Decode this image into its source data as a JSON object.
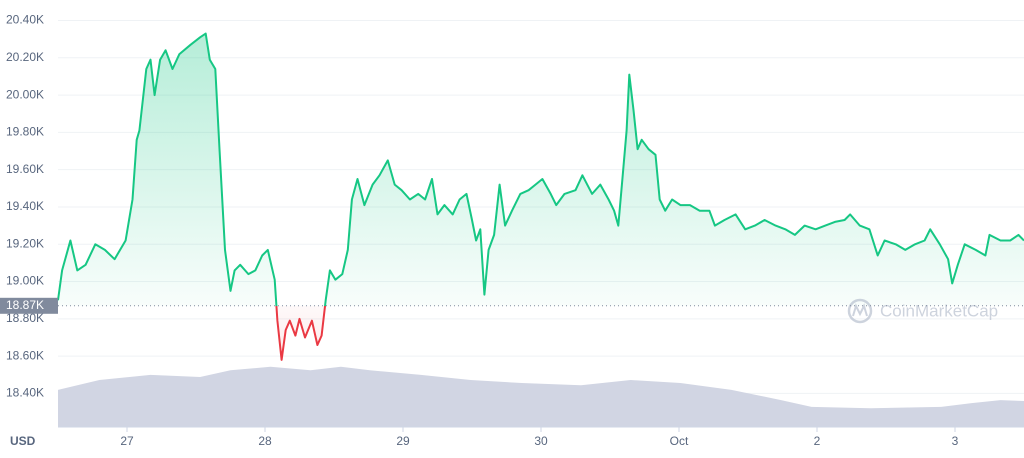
{
  "chart_data": {
    "type": "line",
    "axis_label": "USD",
    "watermark": "CoinMarketCap",
    "xlim": [
      -0.5,
      6.5
    ],
    "xticks": [
      {
        "value": 0,
        "label": "27"
      },
      {
        "value": 1,
        "label": "28"
      },
      {
        "value": 2,
        "label": "29"
      },
      {
        "value": 3,
        "label": "30"
      },
      {
        "value": 4,
        "label": "Oct"
      },
      {
        "value": 5,
        "label": "2"
      },
      {
        "value": 6,
        "label": "3"
      }
    ],
    "ylim": [
      18220,
      20510
    ],
    "yticks": [
      {
        "value": 18400,
        "label": "18.40K"
      },
      {
        "value": 18600,
        "label": "18.60K"
      },
      {
        "value": 18800,
        "label": "18.80K"
      },
      {
        "value": 19000,
        "label": "19.00K"
      },
      {
        "value": 19200,
        "label": "19.20K"
      },
      {
        "value": 19400,
        "label": "19.40K"
      },
      {
        "value": 19600,
        "label": "19.60K"
      },
      {
        "value": 19800,
        "label": "19.80K"
      },
      {
        "value": 20000,
        "label": "20.00K"
      },
      {
        "value": 20200,
        "label": "20.20K"
      },
      {
        "value": 20400,
        "label": "20.40K"
      }
    ],
    "y2lim": [
      0,
      100
    ],
    "grid": true,
    "reference": {
      "value": 18870,
      "label": "18.87K"
    },
    "up_color": "#16c784",
    "down_color": "#ea3943",
    "series": [
      {
        "name": "Price",
        "x": [
          -0.5,
          -0.47,
          -0.41,
          -0.36,
          -0.3,
          -0.23,
          -0.16,
          -0.09,
          -0.01,
          0.04,
          0.07,
          0.09,
          0.14,
          0.17,
          0.2,
          0.24,
          0.28,
          0.33,
          0.38,
          0.46,
          0.53,
          0.57,
          0.6,
          0.64,
          0.67,
          0.71,
          0.75,
          0.78,
          0.82,
          0.88,
          0.93,
          0.98,
          1.02,
          1.07,
          1.09,
          1.12,
          1.15,
          1.18,
          1.22,
          1.25,
          1.29,
          1.34,
          1.38,
          1.41,
          1.44,
          1.47,
          1.51,
          1.56,
          1.6,
          1.63,
          1.67,
          1.72,
          1.78,
          1.83,
          1.89,
          1.94,
          1.99,
          2.05,
          2.11,
          2.16,
          2.21,
          2.25,
          2.3,
          2.36,
          2.41,
          2.46,
          2.5,
          2.53,
          2.56,
          2.59,
          2.62,
          2.66,
          2.7,
          2.74,
          2.79,
          2.85,
          2.91,
          2.96,
          3.01,
          3.07,
          3.11,
          3.17,
          3.25,
          3.3,
          3.37,
          3.43,
          3.49,
          3.53,
          3.56,
          3.59,
          3.62,
          3.64,
          3.67,
          3.7,
          3.73,
          3.78,
          3.83,
          3.86,
          3.9,
          3.95,
          4.01,
          4.08,
          4.15,
          4.22,
          4.26,
          4.33,
          4.41,
          4.48,
          4.55,
          4.62,
          4.7,
          4.77,
          4.84,
          4.91,
          4.99,
          5.06,
          5.13,
          5.2,
          5.24,
          5.31,
          5.38,
          5.44,
          5.49,
          5.57,
          5.64,
          5.71,
          5.78,
          5.82,
          5.89,
          5.95,
          5.98,
          6.02,
          6.07,
          6.15,
          6.22,
          6.25,
          6.33,
          6.4,
          6.46,
          6.5
        ],
        "values": [
          18900,
          19060,
          19220,
          19060,
          19090,
          19200,
          19170,
          19120,
          19220,
          19440,
          19760,
          19810,
          20140,
          20190,
          20000,
          20190,
          20240,
          20140,
          20220,
          20270,
          20310,
          20330,
          20190,
          20140,
          19710,
          19170,
          18950,
          19060,
          19090,
          19040,
          19060,
          19140,
          19170,
          19010,
          18790,
          18580,
          18740,
          18790,
          18710,
          18800,
          18700,
          18790,
          18660,
          18710,
          18900,
          19060,
          19010,
          19040,
          19170,
          19440,
          19550,
          19410,
          19520,
          19570,
          19650,
          19520,
          19490,
          19440,
          19470,
          19440,
          19550,
          19360,
          19410,
          19360,
          19440,
          19470,
          19330,
          19220,
          19280,
          18930,
          19170,
          19250,
          19520,
          19300,
          19380,
          19470,
          19490,
          19520,
          19550,
          19470,
          19410,
          19470,
          19490,
          19570,
          19470,
          19520,
          19440,
          19380,
          19300,
          19550,
          19810,
          20110,
          19920,
          19710,
          19760,
          19710,
          19680,
          19440,
          19380,
          19440,
          19410,
          19410,
          19380,
          19380,
          19300,
          19330,
          19360,
          19280,
          19300,
          19330,
          19300,
          19280,
          19250,
          19300,
          19280,
          19300,
          19320,
          19330,
          19360,
          19300,
          19280,
          19140,
          19220,
          19200,
          19170,
          19200,
          19220,
          19280,
          19200,
          19120,
          18990,
          19090,
          19200,
          19170,
          19140,
          19250,
          19220,
          19220,
          19250,
          19220
        ],
        "color": "#16c784"
      },
      {
        "name": "Volume",
        "axis": "y2",
        "color": "#d1d5e3",
        "x": [
          -0.5,
          -0.2,
          0.17,
          0.53,
          0.75,
          1.04,
          1.33,
          1.55,
          1.76,
          2.13,
          2.49,
          2.86,
          3.29,
          3.65,
          4.01,
          4.38,
          4.74,
          4.96,
          5.39,
          5.9,
          6.12,
          6.33,
          6.5
        ],
        "values": [
          8.7,
          11,
          12.2,
          11.7,
          13.3,
          14.1,
          13.3,
          14.1,
          13.3,
          12.2,
          11,
          10.3,
          9.8,
          11,
          10.3,
          8.7,
          6.3,
          4.7,
          4.4,
          4.7,
          5.6,
          6.3,
          6.1
        ]
      }
    ]
  }
}
